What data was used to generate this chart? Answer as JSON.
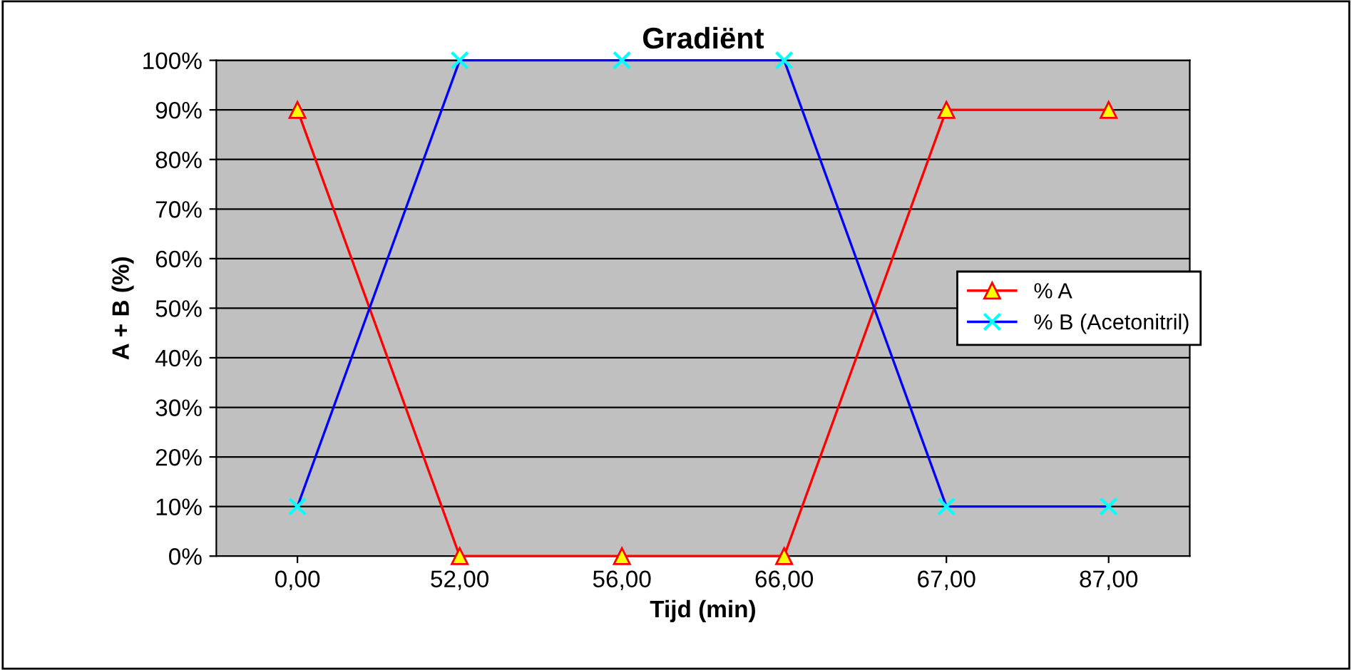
{
  "chart_data": {
    "type": "line",
    "title": "Gradiënt",
    "xlabel": "Tijd (min)",
    "ylabel": "A + B (%)",
    "categories": [
      "0,00",
      "52,00",
      "56,00",
      "66,00",
      "67,00",
      "87,00"
    ],
    "series": [
      {
        "name": "% A",
        "color": "#ff0000",
        "marker": "triangle",
        "values": [
          90,
          0,
          0,
          0,
          90,
          90
        ]
      },
      {
        "name": "% B (Acetonitril)",
        "color": "#0000ff",
        "marker": "cross",
        "values": [
          10,
          100,
          100,
          100,
          10,
          10
        ]
      }
    ],
    "ylim": [
      0,
      100
    ],
    "yticks": [
      {
        "value": 0,
        "label": "0%"
      },
      {
        "value": 10,
        "label": "10%"
      },
      {
        "value": 20,
        "label": "20%"
      },
      {
        "value": 30,
        "label": "30%"
      },
      {
        "value": 40,
        "label": "40%"
      },
      {
        "value": 50,
        "label": "50%"
      },
      {
        "value": 60,
        "label": "60%"
      },
      {
        "value": 70,
        "label": "70%"
      },
      {
        "value": 80,
        "label": "80%"
      },
      {
        "value": 90,
        "label": "90%"
      },
      {
        "value": 100,
        "label": "100%"
      }
    ],
    "grid": "y",
    "legend": "right"
  }
}
